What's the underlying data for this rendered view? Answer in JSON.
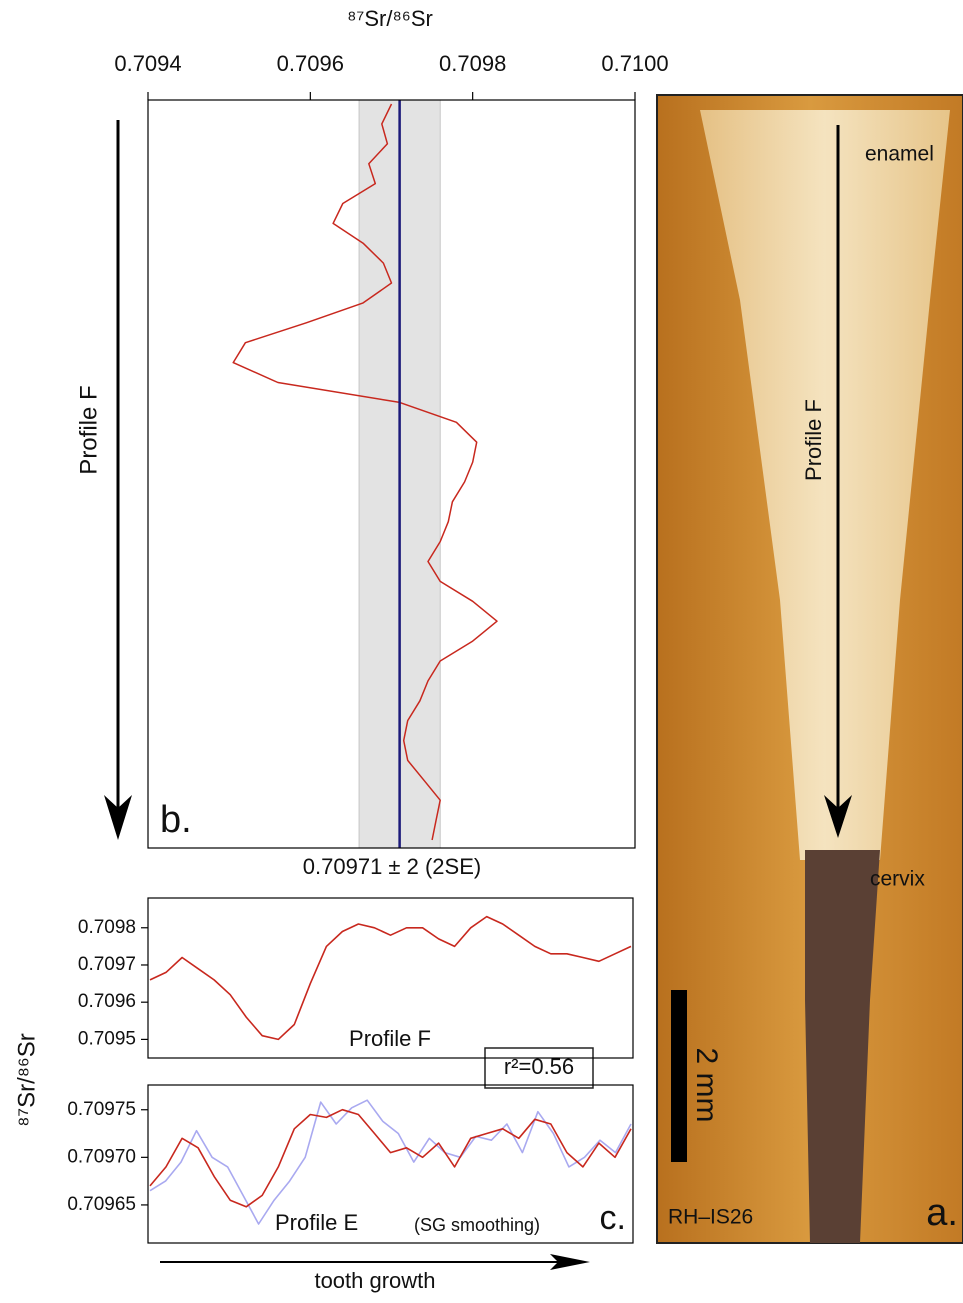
{
  "chart_data": [
    {
      "type": "line",
      "orientation": "vertical",
      "title": "⁸⁷Sr/⁸⁶Sr",
      "xlim": [
        0.7094,
        0.71
      ],
      "xticks": [
        0.7094,
        0.7096,
        0.7098,
        {
          "value": 0.71,
          "label": "0.7100"
        }
      ],
      "color": "#c8281e",
      "values": [
        0.7097,
        0.709688,
        0.709695,
        0.709672,
        0.70968,
        0.70964,
        0.709628,
        0.709665,
        0.70969,
        0.7097,
        0.709665,
        0.709595,
        0.70952,
        0.709505,
        0.70956,
        0.70971,
        0.70978,
        0.709805,
        0.7098,
        0.70979,
        0.709775,
        0.70977,
        0.70976,
        0.709745,
        0.70976,
        0.7098,
        0.70983,
        0.7098,
        0.70976,
        0.709745,
        0.709735,
        0.70972,
        0.709715,
        0.70972,
        0.70974,
        0.70976,
        0.709755,
        0.70975
      ],
      "mean": 0.70971,
      "mean_color": "#1c1a7a",
      "band": [
        0.70966,
        0.70976
      ],
      "band_color": "#e3e3e3",
      "annotation": "0.70971 ± 2 (2SE)",
      "panel_label": "b.",
      "arrow_label": "Profile F"
    },
    {
      "type": "line",
      "orientation": "horizontal",
      "ylim": [
        0.70945,
        0.70988
      ],
      "yticks": [
        0.7095,
        0.7096,
        0.7097,
        0.7098
      ],
      "color": "#c8281e",
      "values": [
        0.70966,
        0.70968,
        0.70972,
        0.70969,
        0.70966,
        0.70962,
        0.70956,
        0.70951,
        0.7095,
        0.70954,
        0.70965,
        0.70975,
        0.70979,
        0.70981,
        0.7098,
        0.70978,
        0.7098,
        0.7098,
        0.70977,
        0.70975,
        0.7098,
        0.70983,
        0.70981,
        0.70978,
        0.70975,
        0.70973,
        0.70973,
        0.70972,
        0.70971,
        0.70973,
        0.70975
      ],
      "label": "Profile F"
    },
    {
      "type": "line",
      "orientation": "horizontal",
      "ylim": [
        0.70961,
        0.709776
      ],
      "yticks": [
        0.70965,
        {
          "value": 0.7097,
          "label": "0.70970"
        },
        0.70975
      ],
      "series": [
        {
          "color": "#a9a9f0",
          "values": [
            0.709665,
            0.709675,
            0.709695,
            0.709728,
            0.7097,
            0.70969,
            0.70966,
            0.70963,
            0.709655,
            0.709675,
            0.7097,
            0.709758,
            0.709735,
            0.709752,
            0.70976,
            0.709738,
            0.709725,
            0.709695,
            0.70972,
            0.709705,
            0.7097,
            0.709722,
            0.709718,
            0.709735,
            0.709705,
            0.709748,
            0.709725,
            0.70969,
            0.7097,
            0.709718,
            0.709705,
            0.709735
          ]
        },
        {
          "color": "#c8281e",
          "values": [
            0.70967,
            0.70969,
            0.70972,
            0.70971,
            0.70968,
            0.709655,
            0.709648,
            0.70966,
            0.70969,
            0.70973,
            0.709745,
            0.709742,
            0.70975,
            0.709745,
            0.709725,
            0.709705,
            0.70971,
            0.7097,
            0.709715,
            0.70969,
            0.70972,
            0.709725,
            0.70973,
            0.70972,
            0.70974,
            0.709735,
            0.709705,
            0.70969,
            0.709715,
            0.7097,
            0.70973
          ]
        }
      ],
      "label": "Profile E",
      "note": "(SG smoothing)",
      "panel_label": "c.",
      "annotation": "r²=0.56",
      "ylabel": "⁸⁷Sr/⁸⁶Sr",
      "xlabel": "tooth growth"
    }
  ],
  "photo": {
    "top_label": "enamel",
    "profile_label": "Profile F",
    "bottom_label": "cervix",
    "scale_label": "2 mm",
    "sample": "RH–IS26",
    "panel_label": "a."
  }
}
